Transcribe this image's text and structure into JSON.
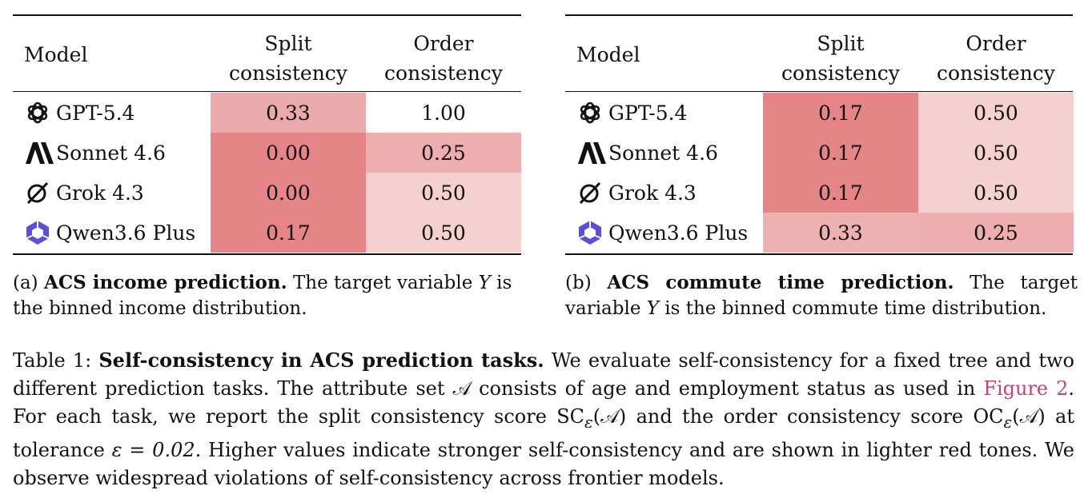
{
  "tables": [
    {
      "id": "a",
      "headers": {
        "model": "Model",
        "split_l1": "Split",
        "split_l2": "consistency",
        "order_l1": "Order",
        "order_l2": "consistency"
      },
      "rows": [
        {
          "icon": "openai-logo-icon",
          "model": "GPT-5.4",
          "split": "0.33",
          "order": "1.00",
          "split_color": "#eaa9aa",
          "order_color": "#ffffff"
        },
        {
          "icon": "anthropic-logo-icon",
          "model": "Sonnet 4.6",
          "split": "0.00",
          "order": "0.25",
          "split_color": "#e68587",
          "order_color": "#edaeaf"
        },
        {
          "icon": "grok-logo-icon",
          "model": "Grok 4.3",
          "split": "0.00",
          "order": "0.50",
          "split_color": "#e68587",
          "order_color": "#f4d0d0"
        },
        {
          "icon": "qwen-logo-icon",
          "model": "Qwen3.6 Plus",
          "split": "0.17",
          "order": "0.50",
          "split_color": "#e68587",
          "order_color": "#f4d0d0"
        }
      ],
      "caption_label": "(a)",
      "caption_bold": "ACS income prediction.",
      "caption_text_1": "The target variable",
      "caption_var": "Y",
      "caption_text_2": "is the binned income distribution."
    },
    {
      "id": "b",
      "headers": {
        "model": "Model",
        "split_l1": "Split",
        "split_l2": "consistency",
        "order_l1": "Order",
        "order_l2": "consistency"
      },
      "rows": [
        {
          "icon": "openai-logo-icon",
          "model": "GPT-5.4",
          "split": "0.17",
          "order": "0.50",
          "split_color": "#e68587",
          "order_color": "#f4d0d0"
        },
        {
          "icon": "anthropic-logo-icon",
          "model": "Sonnet 4.6",
          "split": "0.17",
          "order": "0.50",
          "split_color": "#e68587",
          "order_color": "#f4d0d0"
        },
        {
          "icon": "grok-logo-icon",
          "model": "Grok 4.3",
          "split": "0.17",
          "order": "0.50",
          "split_color": "#e68587",
          "order_color": "#f4d0d0"
        },
        {
          "icon": "qwen-logo-icon",
          "model": "Qwen3.6 Plus",
          "split": "0.33",
          "order": "0.25",
          "split_color": "#edb1b2",
          "order_color": "#edaeaf"
        }
      ],
      "caption_label": "(b)",
      "caption_bold": "ACS commute time prediction.",
      "caption_text_1": "The target variable",
      "caption_var": "Y",
      "caption_text_2": "is the binned commute time distribution."
    }
  ],
  "table_caption": {
    "label": "Table 1:",
    "bold": "Self-consistency in ACS prediction tasks.",
    "text_1": "We evaluate self-consistency for a fixed tree and two different prediction tasks. The attribute set",
    "attr_symbol": "𝒜",
    "text_2": "consists of age and employment status as used in",
    "link": "Figure 2",
    "text_3": ". For each task, we report the split consistency score",
    "sc_score": "SC",
    "text_4": "and the order consistency score",
    "oc_score": "OC",
    "text_5": "at tolerance",
    "tolerance": "ε = 0.02",
    "text_6": ". Higher values indicate stronger self-consistency and are shown in lighter red tones. We observe widespread violations of self-consistency across frontier models."
  }
}
